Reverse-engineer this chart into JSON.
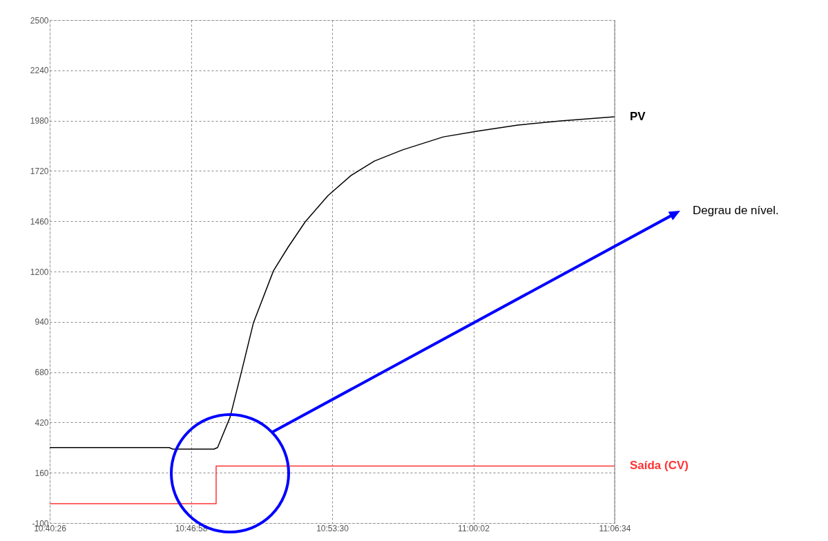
{
  "chart_data": {
    "type": "line",
    "xlim": [
      10.673889,
      11.109444
    ],
    "xticks": [
      {
        "value": 10.673889,
        "label": "10:40:26"
      },
      {
        "value": 10.782778,
        "label": "10:46:58"
      },
      {
        "value": 10.891667,
        "label": "10:53:30"
      },
      {
        "value": 11.000556,
        "label": "11:00:02"
      },
      {
        "value": 11.109444,
        "label": "11:06:34"
      }
    ],
    "ylim": [
      -100,
      2500
    ],
    "yticks": [
      -100,
      160,
      420,
      680,
      940,
      1200,
      1460,
      1720,
      1980,
      2240,
      2500
    ],
    "grid": true,
    "legend": false,
    "series": [
      {
        "name": "PV",
        "type": "line",
        "color": "#000000",
        "x": [
          10.6739,
          10.766,
          10.7687,
          10.8006,
          10.8033,
          10.8129,
          10.8219,
          10.831,
          10.8464,
          10.8576,
          10.8709,
          10.8885,
          10.9061,
          10.9242,
          10.946,
          10.9774,
          11.003,
          11.0349,
          11.0679,
          11.1094
        ],
        "values": [
          290,
          290,
          282,
          282,
          290,
          446,
          686,
          936,
          1204,
          1325,
          1457,
          1593,
          1696,
          1771,
          1829,
          1896,
          1925,
          1957,
          1979,
          2000
        ]
      },
      {
        "name": "Saída (CV)",
        "type": "step",
        "color": "#ff3333",
        "x": [
          10.6739,
          10.8022,
          11.1094
        ],
        "values": [
          0,
          195,
          195
        ]
      }
    ],
    "annotations": [
      "Degrau de nível."
    ]
  }
}
